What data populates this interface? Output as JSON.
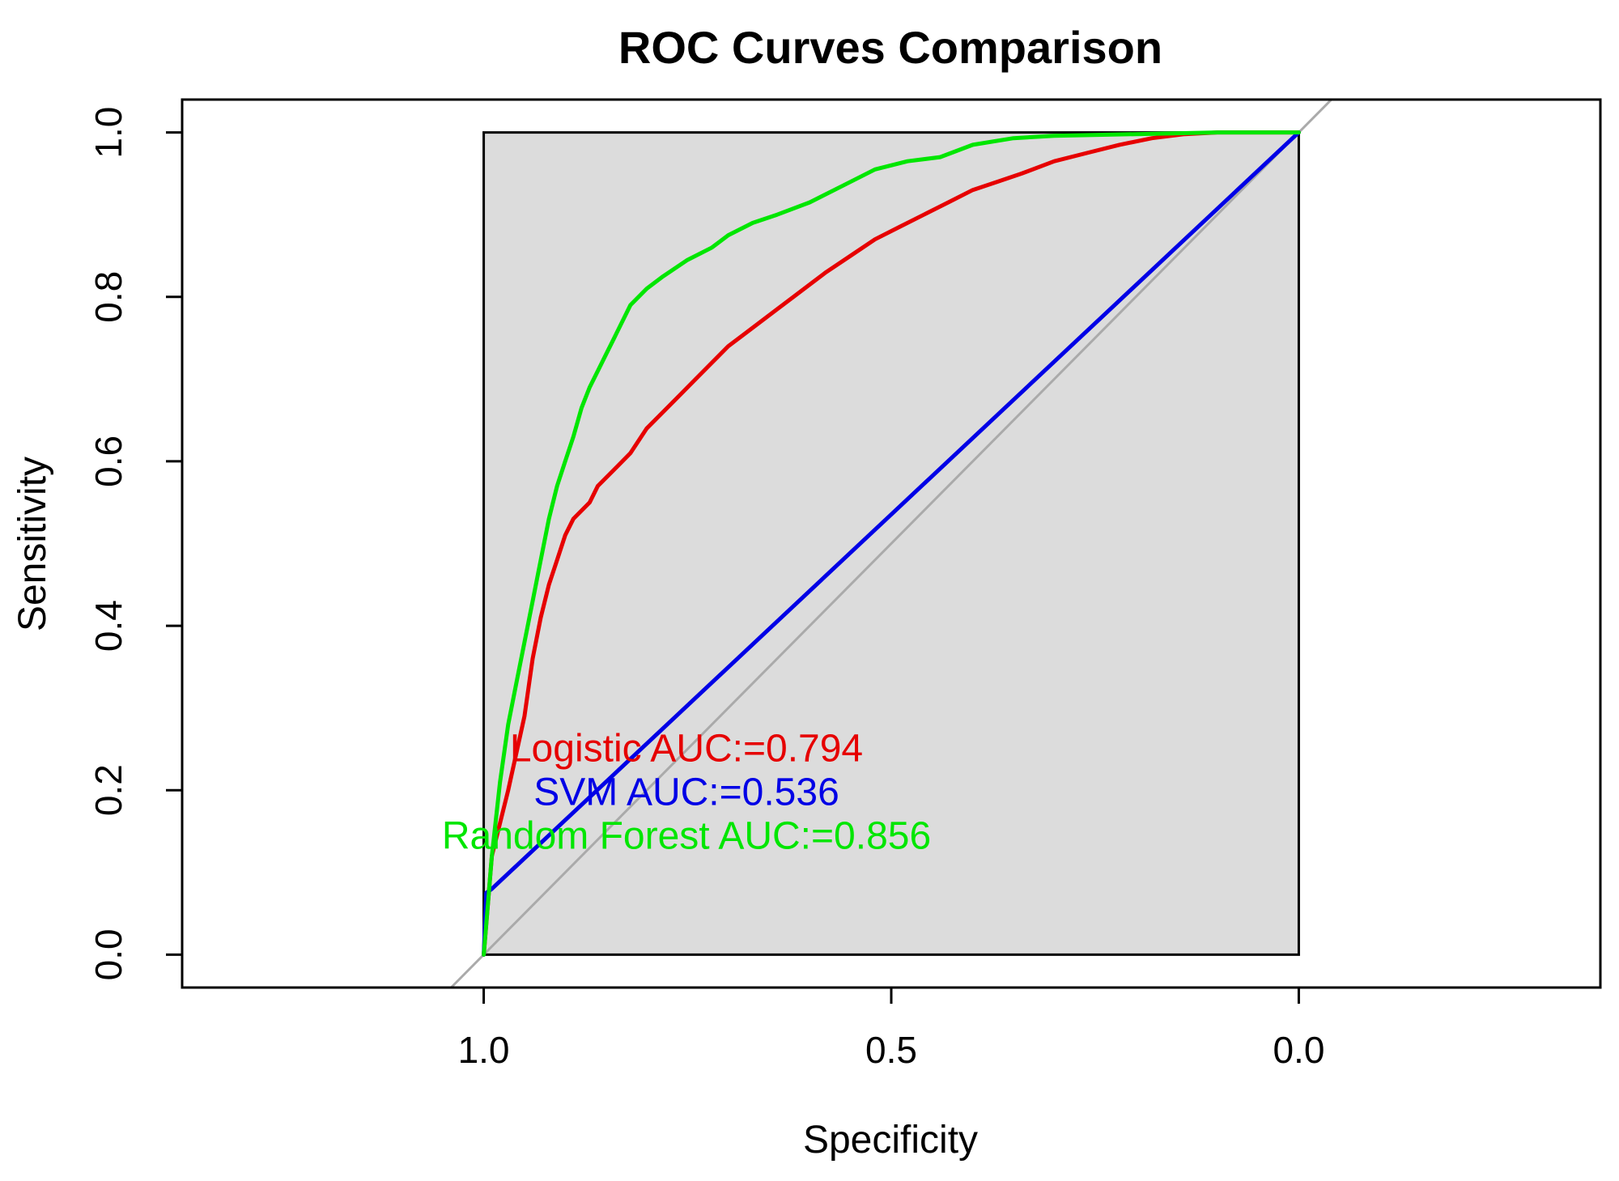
{
  "chart_data": {
    "type": "line",
    "title": "ROC Curves Comparison",
    "xlabel": "Specificity",
    "ylabel": "Sensitivity",
    "xlim": [
      1.37,
      -0.37
    ],
    "ylim": [
      -0.04,
      1.04
    ],
    "x_ticks": [
      1.0,
      0.5,
      0.0
    ],
    "x_tick_labels": [
      "1.0",
      "0.5",
      "0.0"
    ],
    "y_ticks": [
      0.0,
      0.2,
      0.4,
      0.6,
      0.8,
      1.0
    ],
    "y_tick_labels": [
      "0.0",
      "0.2",
      "0.4",
      "0.6",
      "0.8",
      "1.0"
    ],
    "reference_line": {
      "from": [
        1.0,
        0.0
      ],
      "to": [
        0.0,
        1.0
      ],
      "color": "#aaaaaa"
    },
    "shaded_region": {
      "x": [
        0.0,
        1.0
      ],
      "y": [
        0.0,
        1.0
      ],
      "color": "#dcdcdc"
    },
    "series": [
      {
        "name": "Logistic",
        "color": "#e60000",
        "auc_label": "Logistic AUC:=0.794",
        "points": [
          [
            1.0,
            0.0
          ],
          [
            0.99,
            0.12
          ],
          [
            0.97,
            0.2
          ],
          [
            0.95,
            0.29
          ],
          [
            0.94,
            0.36
          ],
          [
            0.93,
            0.41
          ],
          [
            0.92,
            0.45
          ],
          [
            0.91,
            0.48
          ],
          [
            0.9,
            0.51
          ],
          [
            0.89,
            0.53
          ],
          [
            0.87,
            0.55
          ],
          [
            0.86,
            0.57
          ],
          [
            0.84,
            0.59
          ],
          [
            0.82,
            0.61
          ],
          [
            0.8,
            0.64
          ],
          [
            0.78,
            0.66
          ],
          [
            0.76,
            0.68
          ],
          [
            0.74,
            0.7
          ],
          [
            0.72,
            0.72
          ],
          [
            0.7,
            0.74
          ],
          [
            0.68,
            0.755
          ],
          [
            0.66,
            0.77
          ],
          [
            0.64,
            0.785
          ],
          [
            0.62,
            0.8
          ],
          [
            0.6,
            0.815
          ],
          [
            0.58,
            0.83
          ],
          [
            0.55,
            0.85
          ],
          [
            0.52,
            0.87
          ],
          [
            0.49,
            0.885
          ],
          [
            0.46,
            0.9
          ],
          [
            0.43,
            0.915
          ],
          [
            0.4,
            0.93
          ],
          [
            0.37,
            0.94
          ],
          [
            0.34,
            0.95
          ],
          [
            0.3,
            0.965
          ],
          [
            0.26,
            0.975
          ],
          [
            0.22,
            0.985
          ],
          [
            0.18,
            0.993
          ],
          [
            0.14,
            0.998
          ],
          [
            0.1,
            1.0
          ],
          [
            0.0,
            1.0
          ]
        ]
      },
      {
        "name": "SVM",
        "color": "#0000e6",
        "auc_label": "SVM AUC:=0.536",
        "points": [
          [
            1.0,
            0.0
          ],
          [
            0.997,
            0.075
          ],
          [
            0.99,
            0.08
          ],
          [
            0.0,
            1.0
          ]
        ]
      },
      {
        "name": "Random Forest",
        "color": "#00e600",
        "auc_label": "Random Forest AUC:=0.856",
        "points": [
          [
            1.0,
            0.0
          ],
          [
            0.99,
            0.12
          ],
          [
            0.98,
            0.21
          ],
          [
            0.97,
            0.28
          ],
          [
            0.96,
            0.33
          ],
          [
            0.95,
            0.38
          ],
          [
            0.94,
            0.43
          ],
          [
            0.93,
            0.48
          ],
          [
            0.92,
            0.53
          ],
          [
            0.91,
            0.57
          ],
          [
            0.9,
            0.6
          ],
          [
            0.89,
            0.63
          ],
          [
            0.88,
            0.665
          ],
          [
            0.87,
            0.69
          ],
          [
            0.86,
            0.71
          ],
          [
            0.85,
            0.73
          ],
          [
            0.84,
            0.75
          ],
          [
            0.83,
            0.77
          ],
          [
            0.82,
            0.79
          ],
          [
            0.8,
            0.81
          ],
          [
            0.78,
            0.825
          ],
          [
            0.75,
            0.845
          ],
          [
            0.72,
            0.86
          ],
          [
            0.7,
            0.875
          ],
          [
            0.67,
            0.89
          ],
          [
            0.64,
            0.9
          ],
          [
            0.6,
            0.915
          ],
          [
            0.56,
            0.935
          ],
          [
            0.52,
            0.955
          ],
          [
            0.48,
            0.965
          ],
          [
            0.44,
            0.97
          ],
          [
            0.4,
            0.985
          ],
          [
            0.35,
            0.993
          ],
          [
            0.3,
            0.996
          ],
          [
            0.2,
            0.998
          ],
          [
            0.1,
            1.0
          ],
          [
            0.0,
            1.0
          ]
        ]
      }
    ]
  }
}
